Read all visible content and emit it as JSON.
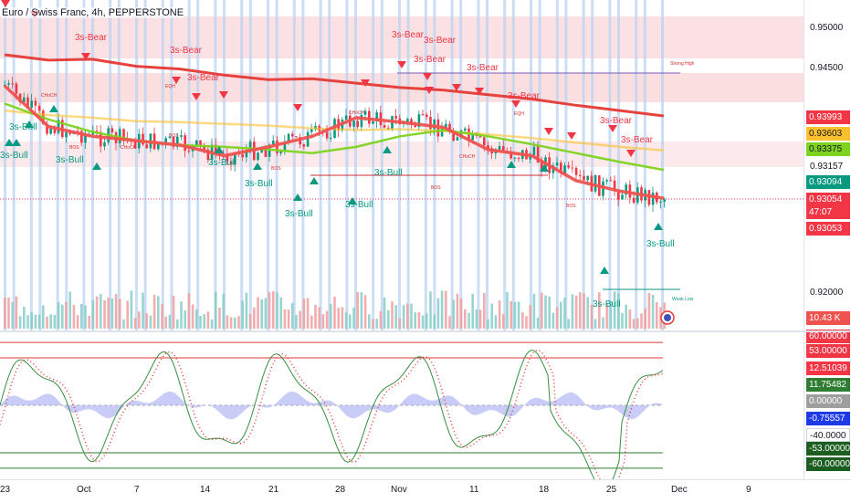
{
  "symbol_title": "Euro / Swiss Franc, 4h, PEPPERSTONE",
  "colors": {
    "bear": "#f23645",
    "bull": "#089981",
    "ema200": "#e53935",
    "ema100": "#fbc02d",
    "ema50": "#7ed321",
    "ema20": "#ef5350",
    "band": "#f8c9cc",
    "vstripe": "#bbd3f2",
    "stoch_k": "#388e3c",
    "stoch_d": "#e53935",
    "rsi_fill": "#b3b7f5"
  },
  "price_axis": {
    "ticks": [
      "0.95000",
      "0.94500",
      "0.93157",
      "0.92000"
    ],
    "tags": [
      {
        "label": "0.93993",
        "color": "#f23645",
        "text_color": "#ffffff"
      },
      {
        "label": "0.93603",
        "color": "#fbc02d",
        "text_color": "#131722"
      },
      {
        "label": "0.93375",
        "color": "#7ed321",
        "text_color": "#131722"
      },
      {
        "label": "0.93094",
        "color": "#089981",
        "text_color": "#ffffff"
      },
      {
        "label": "0.93054",
        "color": "#f23645",
        "text_color": "#ffffff"
      },
      {
        "label": "47:07",
        "color": "#f23645",
        "text_color": "#ffffff"
      },
      {
        "label": "0.93053",
        "color": "#f23645",
        "text_color": "#ffffff"
      },
      {
        "label": "10.43 K",
        "color": "#ef5350",
        "text_color": "#ffffff"
      }
    ]
  },
  "osc_axis": {
    "tags": [
      {
        "label": "60.00000",
        "color": "#f23645",
        "text_color": "#ffffff"
      },
      {
        "label": "53.00000",
        "color": "#f23645",
        "text_color": "#ffffff"
      },
      {
        "label": "12.51039",
        "color": "#f23645",
        "text_color": "#ffffff"
      },
      {
        "label": "11.75482",
        "color": "#2e7d32",
        "text_color": "#ffffff"
      },
      {
        "label": "0.00000",
        "color": "#9e9e9e",
        "text_color": "#ffffff"
      },
      {
        "label": "-0.75557",
        "color": "#1e3ae8",
        "text_color": "#ffffff"
      },
      {
        "label": "-40.0000",
        "color": "#ffffff",
        "text_color": "#131722"
      },
      {
        "label": "-53.00000",
        "color": "#1b5e20",
        "text_color": "#ffffff"
      },
      {
        "label": "-60.00000",
        "color": "#1b5e20",
        "text_color": "#ffffff"
      }
    ]
  },
  "time_axis": [
    "23",
    "Oct",
    "7",
    "14",
    "21",
    "28",
    "Nov",
    "11",
    "18",
    "25",
    "Dec",
    "9"
  ],
  "annotations": {
    "bear_signals": [
      {
        "label": "3s-Bear"
      },
      {
        "label": "3s-Bear"
      },
      {
        "label": "3s-Bear"
      },
      {
        "label": "3s-Bear"
      },
      {
        "label": "3s-Bear"
      },
      {
        "label": "3s-Bear"
      },
      {
        "label": "3s-Bear"
      },
      {
        "label": "3s-Bear"
      },
      {
        "label": "3s-Bear"
      },
      {
        "label": "3s-Bear"
      }
    ],
    "bull_signals": [
      {
        "label": "3s-Bull"
      },
      {
        "label": "3s-Bull"
      },
      {
        "label": "3s-Bull"
      },
      {
        "label": "3s-Bull"
      },
      {
        "label": "3s-Bull"
      },
      {
        "label": "3s-Bull"
      },
      {
        "label": "3s-Bull"
      },
      {
        "label": "3s-Bull"
      },
      {
        "label": "3s-Bull"
      }
    ],
    "structure_labels": {
      "bos": "BOS",
      "choch": "CHoCH",
      "eqh": "EQH",
      "strong_high": "Strong High",
      "weak_low": "Weak Low"
    }
  },
  "chart_data": {
    "type": "line",
    "title": "Euro / Swiss Franc, 4h, PEPPERSTONE",
    "x_ticks": [
      "23",
      "Oct",
      "7",
      "14",
      "21",
      "28",
      "Nov",
      "11",
      "18",
      "25",
      "Dec",
      "9"
    ],
    "ylim": [
      0.9175,
      0.9525
    ],
    "series": [
      {
        "values": [
          0.9468,
          0.9462,
          0.9463,
          0.9455,
          0.9452,
          0.9445,
          0.944,
          0.9441,
          0.9436,
          0.9431,
          0.9428,
          0.9423,
          0.9418,
          0.9411,
          0.9405,
          0.9399
        ]
      },
      {
        "values": [
          0.9405,
          0.94,
          0.9397,
          0.9393,
          0.9392,
          0.939,
          0.9388,
          0.9385,
          0.9383,
          0.9384,
          0.9382,
          0.9378,
          0.9374,
          0.9369,
          0.9364,
          0.936
        ]
      },
      {
        "values": [
          0.9413,
          0.9395,
          0.9381,
          0.9371,
          0.9366,
          0.9364,
          0.9361,
          0.9357,
          0.9364,
          0.9376,
          0.9383,
          0.9376,
          0.9367,
          0.9357,
          0.9347,
          0.9338
        ]
      },
      {
        "values": [
          0.9433,
          0.9387,
          0.9376,
          0.9371,
          0.9366,
          0.9354,
          0.9364,
          0.9376,
          0.9397,
          0.9392,
          0.9386,
          0.9361,
          0.9354,
          0.9326,
          0.9314,
          0.9306
        ]
      }
    ]
  }
}
